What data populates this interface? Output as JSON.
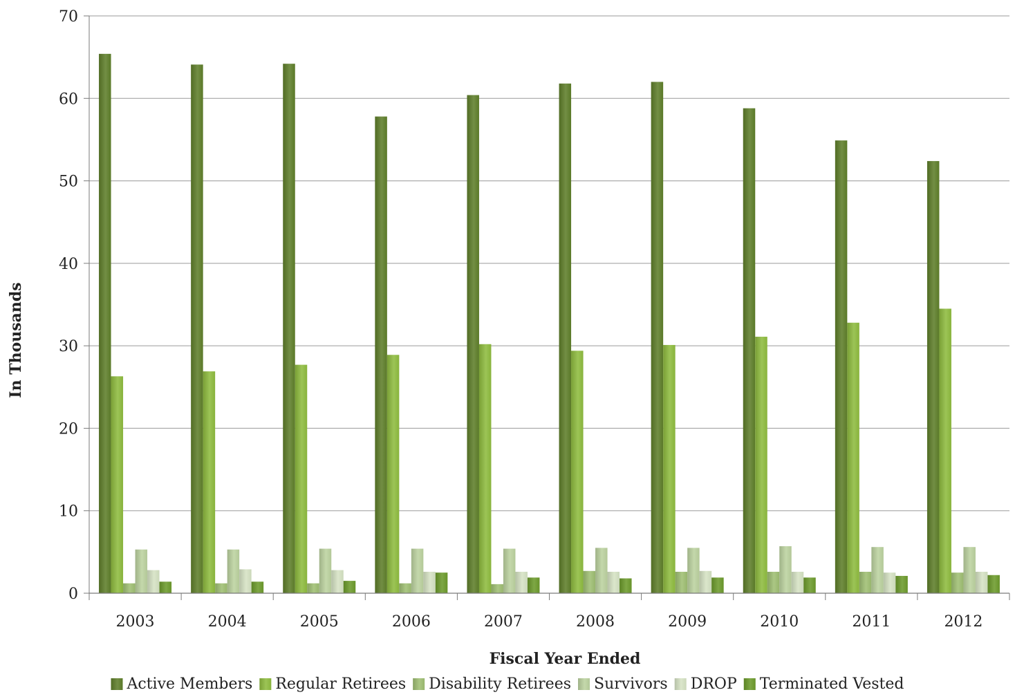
{
  "chart_data": {
    "type": "bar",
    "title": "",
    "xlabel": "Fiscal Year Ended",
    "ylabel": "In Thousands",
    "ylim": [
      0,
      70
    ],
    "yticks": [
      0,
      10,
      20,
      30,
      40,
      50,
      60,
      70
    ],
    "grid": true,
    "legend_position": "bottom",
    "categories": [
      "2003",
      "2004",
      "2005",
      "2006",
      "2007",
      "2008",
      "2009",
      "2010",
      "2011",
      "2012"
    ],
    "series": [
      {
        "name": "Active Members",
        "color": "#5f7f2a",
        "values": [
          65.4,
          64.1,
          64.2,
          57.8,
          60.4,
          61.8,
          62.0,
          58.8,
          54.9,
          52.4
        ]
      },
      {
        "name": "Regular Retirees",
        "color": "#8fbc3f",
        "values": [
          26.3,
          26.9,
          27.7,
          28.9,
          30.2,
          29.4,
          30.1,
          31.1,
          32.8,
          34.5
        ]
      },
      {
        "name": "Disability Retirees",
        "color": "#9fbf73",
        "values": [
          1.2,
          1.2,
          1.2,
          1.2,
          1.1,
          2.7,
          2.6,
          2.6,
          2.6,
          2.5
        ]
      },
      {
        "name": "Survivors",
        "color": "#bcd3a0",
        "values": [
          5.3,
          5.3,
          5.4,
          5.4,
          5.4,
          5.5,
          5.5,
          5.7,
          5.6,
          5.6
        ]
      },
      {
        "name": "DROP",
        "color": "#d6e3c4",
        "values": [
          2.8,
          2.9,
          2.8,
          2.6,
          2.6,
          2.6,
          2.7,
          2.6,
          2.5,
          2.6
        ]
      },
      {
        "name": "Terminated Vested",
        "color": "#6c9b2c",
        "values": [
          1.4,
          1.4,
          1.5,
          2.5,
          1.9,
          1.8,
          1.9,
          1.9,
          2.1,
          2.2
        ]
      }
    ]
  }
}
